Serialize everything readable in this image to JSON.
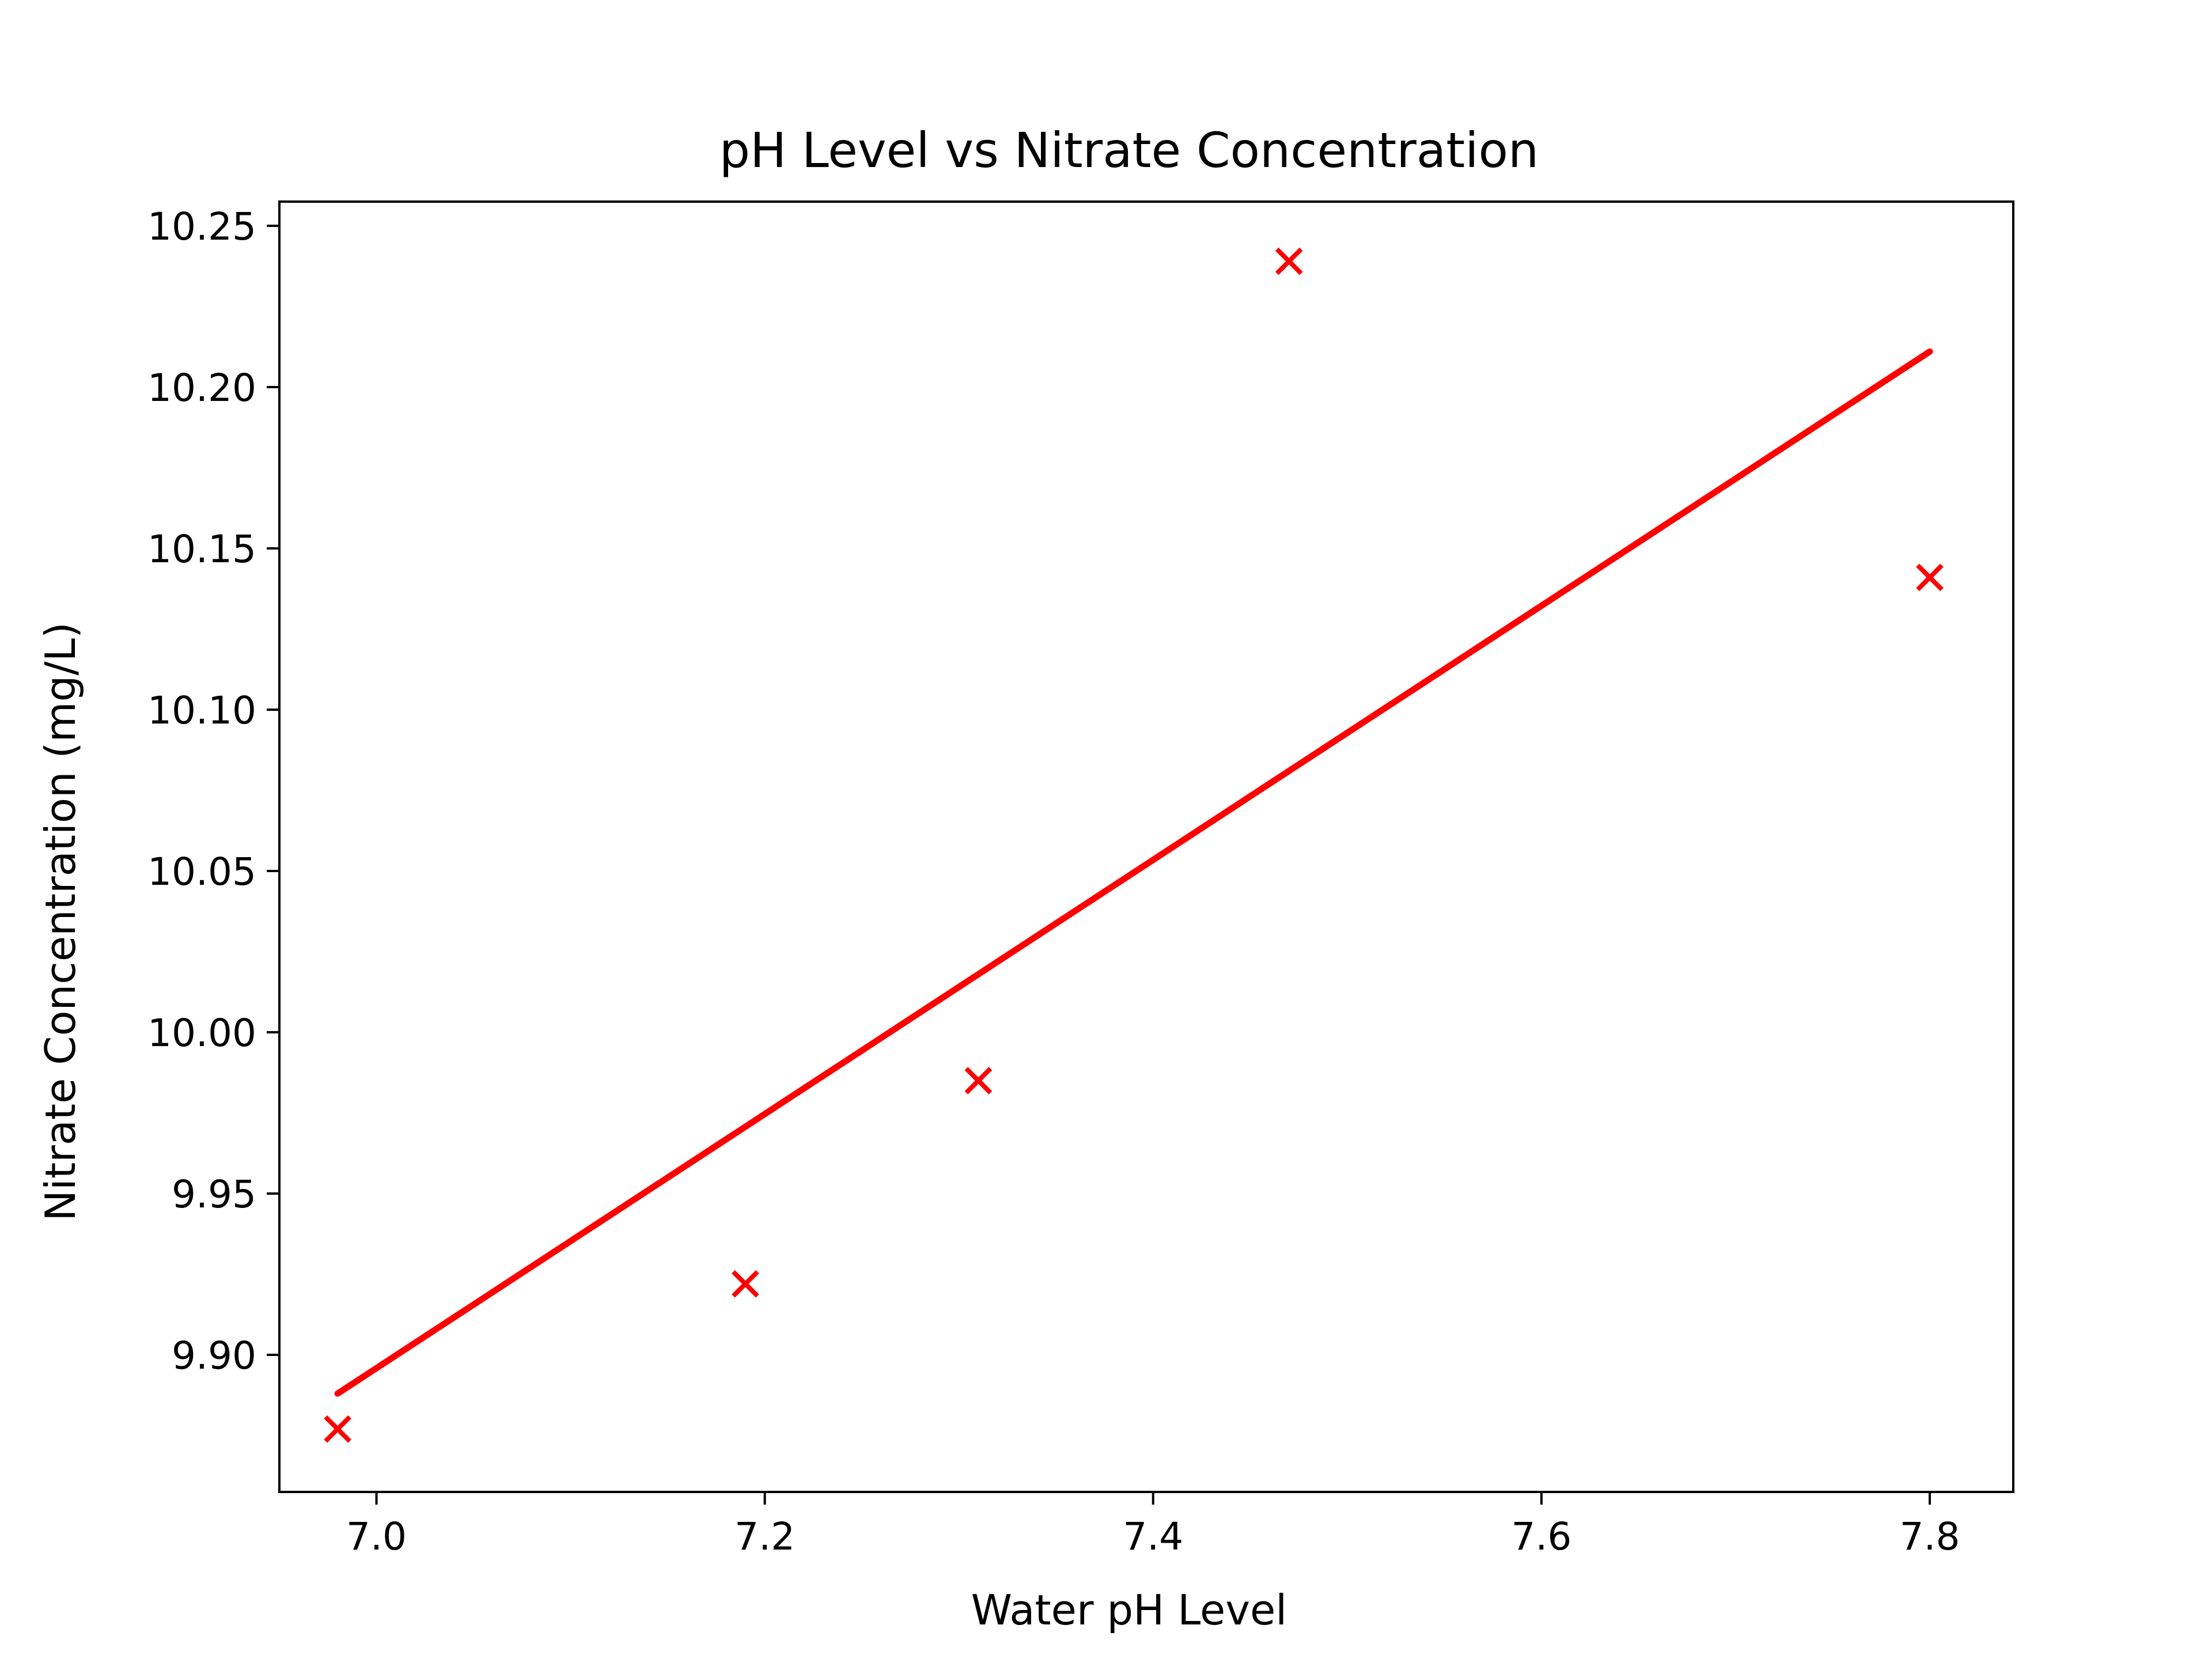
{
  "chart_data": {
    "type": "scatter",
    "title": "pH Level vs Nitrate Concentration",
    "xlabel": "Water pH Level",
    "ylabel": "Nitrate Concentration (mg/L)",
    "xlim": [
      6.95,
      7.843
    ],
    "ylim": [
      9.8575,
      10.2575
    ],
    "xticks": [
      7.0,
      7.2,
      7.4,
      7.6,
      7.8
    ],
    "xtick_labels": [
      "7.0",
      "7.2",
      "7.4",
      "7.6",
      "7.8"
    ],
    "yticks": [
      9.9,
      9.95,
      10.0,
      10.05,
      10.1,
      10.15,
      10.2,
      10.25
    ],
    "ytick_labels": [
      "9.90",
      "9.95",
      "10.00",
      "10.05",
      "10.10",
      "10.15",
      "10.20",
      "10.25"
    ],
    "grid": false,
    "series": [
      {
        "marker": "x",
        "color": "#ff0000",
        "points": [
          {
            "x": 6.98,
            "y": 9.877
          },
          {
            "x": 7.19,
            "y": 9.922
          },
          {
            "x": 7.31,
            "y": 9.985
          },
          {
            "x": 7.47,
            "y": 10.239
          },
          {
            "x": 7.8,
            "y": 10.141
          }
        ]
      }
    ],
    "trendline": {
      "color": "#ff0000",
      "from": {
        "x": 6.98,
        "y": 9.888
      },
      "to": {
        "x": 7.8,
        "y": 10.211
      }
    }
  }
}
